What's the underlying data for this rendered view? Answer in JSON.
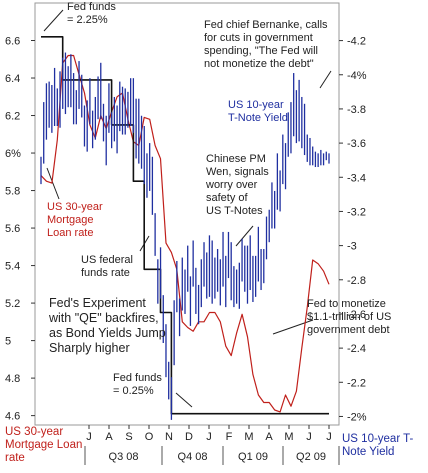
{
  "chart_data": {
    "type": "line",
    "x_axis": {
      "month_ticks": [
        "J",
        "A",
        "S",
        "O",
        "N",
        "D",
        "J",
        "F",
        "M",
        "A",
        "M",
        "J",
        "J"
      ],
      "quarters": [
        "Q3 08",
        "Q4 08",
        "Q1 09",
        "Q2 09"
      ]
    },
    "left_axis": {
      "title": "US 30-year Mortgage Loan rate",
      "ticks": [
        "6.6",
        "6.4",
        "6.2",
        "6%",
        "5.8",
        "5.6",
        "5.4",
        "5.2",
        "5",
        "4.8",
        "4.6"
      ],
      "values": [
        6.6,
        6.4,
        6.2,
        6.0,
        5.8,
        5.6,
        5.4,
        5.2,
        5.0,
        4.8,
        4.6
      ],
      "range": [
        4.55,
        6.8
      ]
    },
    "right_axis": {
      "title": "US 10-year T-Note Yield",
      "ticks": [
        "4.2",
        "4%",
        "3.8",
        "3.6",
        "3.4",
        "3.2",
        "3",
        "2.8",
        "2.6",
        "2.4",
        "2.2",
        "2%"
      ],
      "values": [
        4.2,
        4.0,
        3.8,
        3.6,
        3.4,
        3.2,
        3.0,
        2.8,
        2.6,
        2.4,
        2.2,
        2.0
      ],
      "range": [
        1.95,
        4.42
      ]
    },
    "series": [
      {
        "name": "US 30-year Mortgage Loan rate",
        "axis": "left",
        "color": "#c0201b",
        "x": [
          0,
          1,
          2,
          3,
          4,
          5,
          6,
          7,
          8,
          9,
          10,
          11,
          12,
          13,
          14,
          15,
          16,
          17,
          18,
          19,
          20,
          21,
          22,
          23,
          24,
          25,
          26,
          27,
          28,
          29,
          30,
          31,
          32,
          33,
          34,
          35,
          36,
          37,
          38,
          39,
          40,
          41,
          42,
          43,
          44,
          45,
          46,
          47,
          48,
          49,
          50,
          51,
          52,
          53
        ],
        "y": [
          5.88,
          5.85,
          5.84,
          6.07,
          6.48,
          6.52,
          6.52,
          6.42,
          6.32,
          6.15,
          6.08,
          6.2,
          6.13,
          6.22,
          6.3,
          6.32,
          6.18,
          6.06,
          6.04,
          6.19,
          6.18,
          6.04,
          5.97,
          5.52,
          5.47,
          5.38,
          5.1,
          5.07,
          5.05,
          5.1,
          5.1,
          5.15,
          5.15,
          5.1,
          4.97,
          4.92,
          5.04,
          5.14,
          5.02,
          4.82,
          4.71,
          4.67,
          4.67,
          4.63,
          4.62,
          4.71,
          4.65,
          4.73,
          4.96,
          5.18,
          5.43,
          5.41,
          5.37,
          5.3
        ]
      },
      {
        "name": "US federal funds rate",
        "axis": "left",
        "color": "#111111",
        "x": [
          0,
          4,
          4,
          13,
          13,
          17,
          17,
          19,
          19,
          22,
          22,
          24,
          24,
          53
        ],
        "y": [
          6.62,
          6.62,
          6.39,
          6.39,
          6.15,
          6.15,
          5.85,
          5.85,
          5.38,
          5.38,
          5.15,
          5.15,
          4.61,
          4.61
        ]
      },
      {
        "name": "US 10-year T-Note Yield",
        "axis": "right",
        "type": "range_bars",
        "color": "#1f2fa0",
        "x": [
          0,
          0.5,
          1,
          1.5,
          2,
          2.5,
          3,
          3.5,
          4,
          4.5,
          5,
          5.5,
          6,
          6.5,
          7,
          7.5,
          8,
          8.5,
          9,
          9.5,
          10,
          10.5,
          11,
          11.5,
          12,
          12.5,
          13,
          13.5,
          14,
          14.5,
          15,
          15.5,
          16,
          16.5,
          17,
          17.5,
          18,
          18.5,
          19,
          19.5,
          20,
          20.5,
          21,
          21.5,
          22,
          22.5,
          23,
          23.5,
          24,
          24.5,
          25,
          25.5,
          26,
          26.5,
          27,
          27.5,
          28,
          28.5,
          29,
          29.5,
          30,
          30.5,
          31,
          31.5,
          32,
          32.5,
          33,
          33.5,
          34,
          34.5,
          35,
          35.5,
          36,
          36.5,
          37,
          37.5,
          38,
          38.5,
          39,
          39.5,
          40,
          40.5,
          41,
          41.5,
          42,
          42.5,
          43,
          43.5,
          44,
          44.5,
          45,
          45.5,
          46,
          46.5,
          47,
          47.5,
          48,
          48.5,
          49,
          49.5,
          50,
          50.5,
          51,
          51.5,
          52,
          52.5,
          53
        ],
        "high": [
          3.52,
          3.84,
          3.95,
          3.96,
          3.94,
          4.04,
          3.92,
          4.02,
          4.1,
          4.13,
          4.05,
          4.12,
          4.01,
          3.91,
          4.08,
          4.0,
          3.82,
          3.85,
          3.98,
          3.79,
          3.87,
          3.99,
          4.07,
          3.83,
          3.76,
          3.95,
          3.78,
          3.87,
          3.82,
          3.96,
          3.93,
          3.92,
          3.9,
          3.98,
          3.98,
          3.86,
          3.86,
          3.76,
          3.7,
          3.54,
          3.6,
          3.52,
          3.19,
          2.92,
          2.99,
          2.71,
          2.54,
          2.32,
          2.23,
          2.68,
          2.91,
          2.69,
          2.93,
          2.86,
          3.0,
          2.82,
          3.03,
          2.87,
          2.77,
          2.92,
          3.02,
          2.96,
          3.06,
          3.03,
          2.93,
          2.98,
          2.92,
          3.08,
          2.94,
          3.08,
          3.02,
          2.88,
          2.86,
          2.9,
          3.04,
          3.0,
          3.0,
          3.06,
          2.94,
          2.94,
          3.11,
          2.98,
          2.98,
          3.17,
          3.21,
          3.37,
          3.32,
          3.54,
          3.44,
          3.65,
          3.6,
          3.78,
          3.84,
          4.01,
          3.91,
          3.97,
          3.87,
          3.83,
          3.65,
          3.63,
          3.58,
          3.55,
          3.54,
          3.56,
          3.54,
          3.55,
          3.54
        ],
        "low": [
          3.36,
          3.48,
          3.62,
          3.69,
          3.66,
          3.7,
          3.7,
          3.69,
          3.8,
          3.77,
          3.81,
          3.81,
          3.71,
          3.71,
          3.8,
          3.75,
          3.58,
          3.55,
          3.71,
          3.57,
          3.62,
          3.74,
          3.74,
          3.61,
          3.47,
          3.66,
          3.57,
          3.61,
          3.54,
          3.67,
          3.65,
          3.65,
          3.69,
          3.7,
          3.66,
          3.51,
          3.48,
          3.45,
          3.36,
          3.28,
          3.32,
          3.18,
          2.94,
          2.66,
          2.69,
          2.43,
          2.23,
          2.1,
          1.98,
          2.3,
          2.61,
          2.47,
          2.62,
          2.6,
          2.73,
          2.53,
          2.76,
          2.6,
          2.54,
          2.64,
          2.76,
          2.69,
          2.7,
          2.66,
          2.69,
          2.73,
          2.65,
          2.76,
          2.64,
          2.81,
          2.68,
          2.64,
          2.66,
          2.63,
          2.79,
          2.73,
          2.66,
          2.74,
          2.67,
          2.7,
          2.79,
          2.74,
          2.78,
          2.92,
          3.02,
          3.1,
          3.1,
          3.21,
          3.2,
          3.36,
          3.33,
          3.52,
          3.54,
          3.64,
          3.6,
          3.61,
          3.57,
          3.53,
          3.49,
          3.47,
          3.47,
          3.46,
          3.46,
          3.47,
          3.47,
          3.5,
          3.48
        ]
      }
    ],
    "annotations": [
      {
        "id": "ffhigh",
        "text": "Fed funds\n= 2.25%"
      },
      {
        "id": "bernanke",
        "text": "Fed chief Bernanke, calls\nfor cuts in government\nspending, \"The Fed will\nnot monetize the debt\""
      },
      {
        "id": "tnote",
        "text": "US 10-year\nT-Note Yield"
      },
      {
        "id": "wen",
        "text": "Chinese PM\nWen, signals\nworry over\nsafety of\nUS T-Notes"
      },
      {
        "id": "mortgage",
        "text": "US 30-year\nMortgage\nLoan rate"
      },
      {
        "id": "fedfunds",
        "text": "US federal\nfunds rate"
      },
      {
        "id": "qe",
        "text": "Fed's Experiment\nwith \"QE\" backfires,\nas Bond Yields Jump\nSharply higher"
      },
      {
        "id": "monetize",
        "text": "Fed to monetize\n$1.1-trillion of US\ngovernment debt"
      },
      {
        "id": "fflow",
        "text": "Fed funds\n= 0.25%"
      }
    ]
  }
}
